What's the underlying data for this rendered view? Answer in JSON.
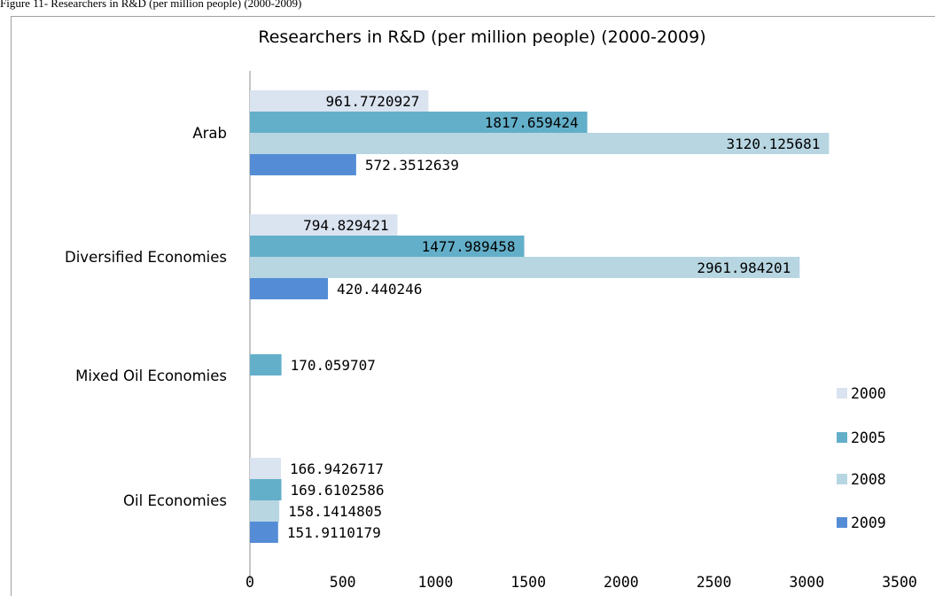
{
  "caption": "Figure 11- Researchers in R&D (per million people) (2000-2009)",
  "chart_data": {
    "type": "bar",
    "orientation": "horizontal",
    "title": "Researchers in R&D (per million people) (2000-2009)",
    "xlabel": "",
    "ylabel": "",
    "xlim": [
      0,
      3500
    ],
    "x_ticks": [
      "0",
      "500",
      "1000",
      "1500",
      "2000",
      "2500",
      "3000",
      "3500"
    ],
    "grid": false,
    "legend_position": "right",
    "categories": [
      "Arab",
      "Diversified Economies",
      "Mixed Oil Economies",
      "Oil Economies"
    ],
    "series": [
      {
        "name": "2000",
        "color": "#dae3f0",
        "values": [
          961.7720927,
          794.829421,
          null,
          166.9426717
        ],
        "labels": [
          "961.7720927",
          "794.829421",
          "",
          "166.9426717"
        ]
      },
      {
        "name": "2005",
        "color": "#63afc9",
        "values": [
          1817.659424,
          1477.989458,
          170.059707,
          169.6102586
        ],
        "labels": [
          "1817.659424",
          "1477.989458",
          "170.059707",
          "169.6102586"
        ]
      },
      {
        "name": "2008",
        "color": "#b7d6e2",
        "values": [
          3120.125681,
          2961.984201,
          null,
          158.1414805
        ],
        "labels": [
          "3120.125681",
          "2961.984201",
          "",
          "158.1414805"
        ]
      },
      {
        "name": "2009",
        "color": "#548dd5",
        "values": [
          572.3512639,
          420.440246,
          null,
          151.9110179
        ],
        "labels": [
          "572.3512639",
          "420.440246",
          "",
          "151.9110179"
        ]
      }
    ]
  }
}
